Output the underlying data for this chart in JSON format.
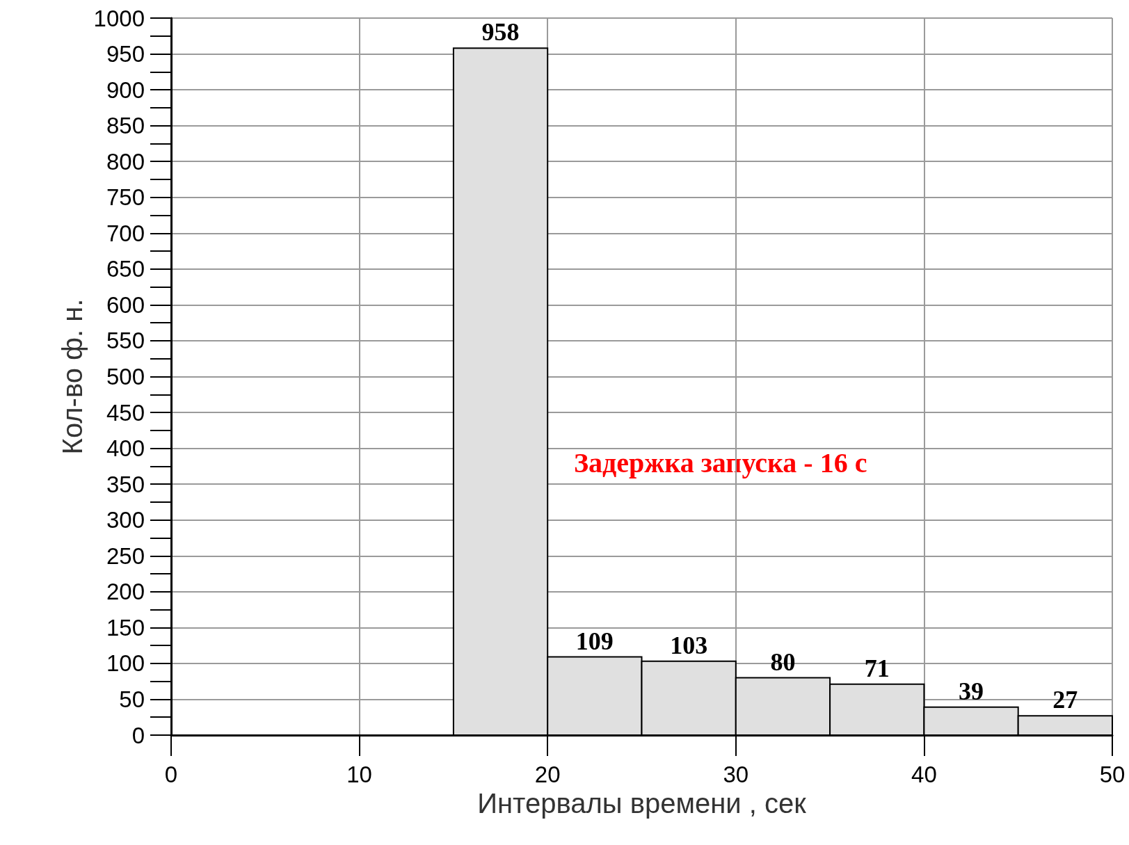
{
  "chart_data": {
    "type": "histogram",
    "xlabel": "Интервалы времени , сек",
    "ylabel": "Кол-во ф. н.",
    "bins": [
      15,
      20,
      25,
      30,
      35,
      40,
      45,
      50
    ],
    "values": [
      958,
      109,
      103,
      80,
      71,
      39,
      27
    ],
    "color": "#e0e0e0",
    "data_labels": true,
    "xlim": [
      0,
      50
    ],
    "xticks": [
      0,
      10,
      20,
      30,
      40,
      50
    ],
    "ylim": [
      0,
      1000
    ],
    "yticks": [
      0,
      50,
      100,
      150,
      200,
      250,
      300,
      350,
      400,
      450,
      500,
      550,
      600,
      650,
      700,
      750,
      800,
      850,
      900,
      950,
      1000
    ],
    "grid": true,
    "annotations": [
      "Задержка запуска - 16 с"
    ]
  }
}
